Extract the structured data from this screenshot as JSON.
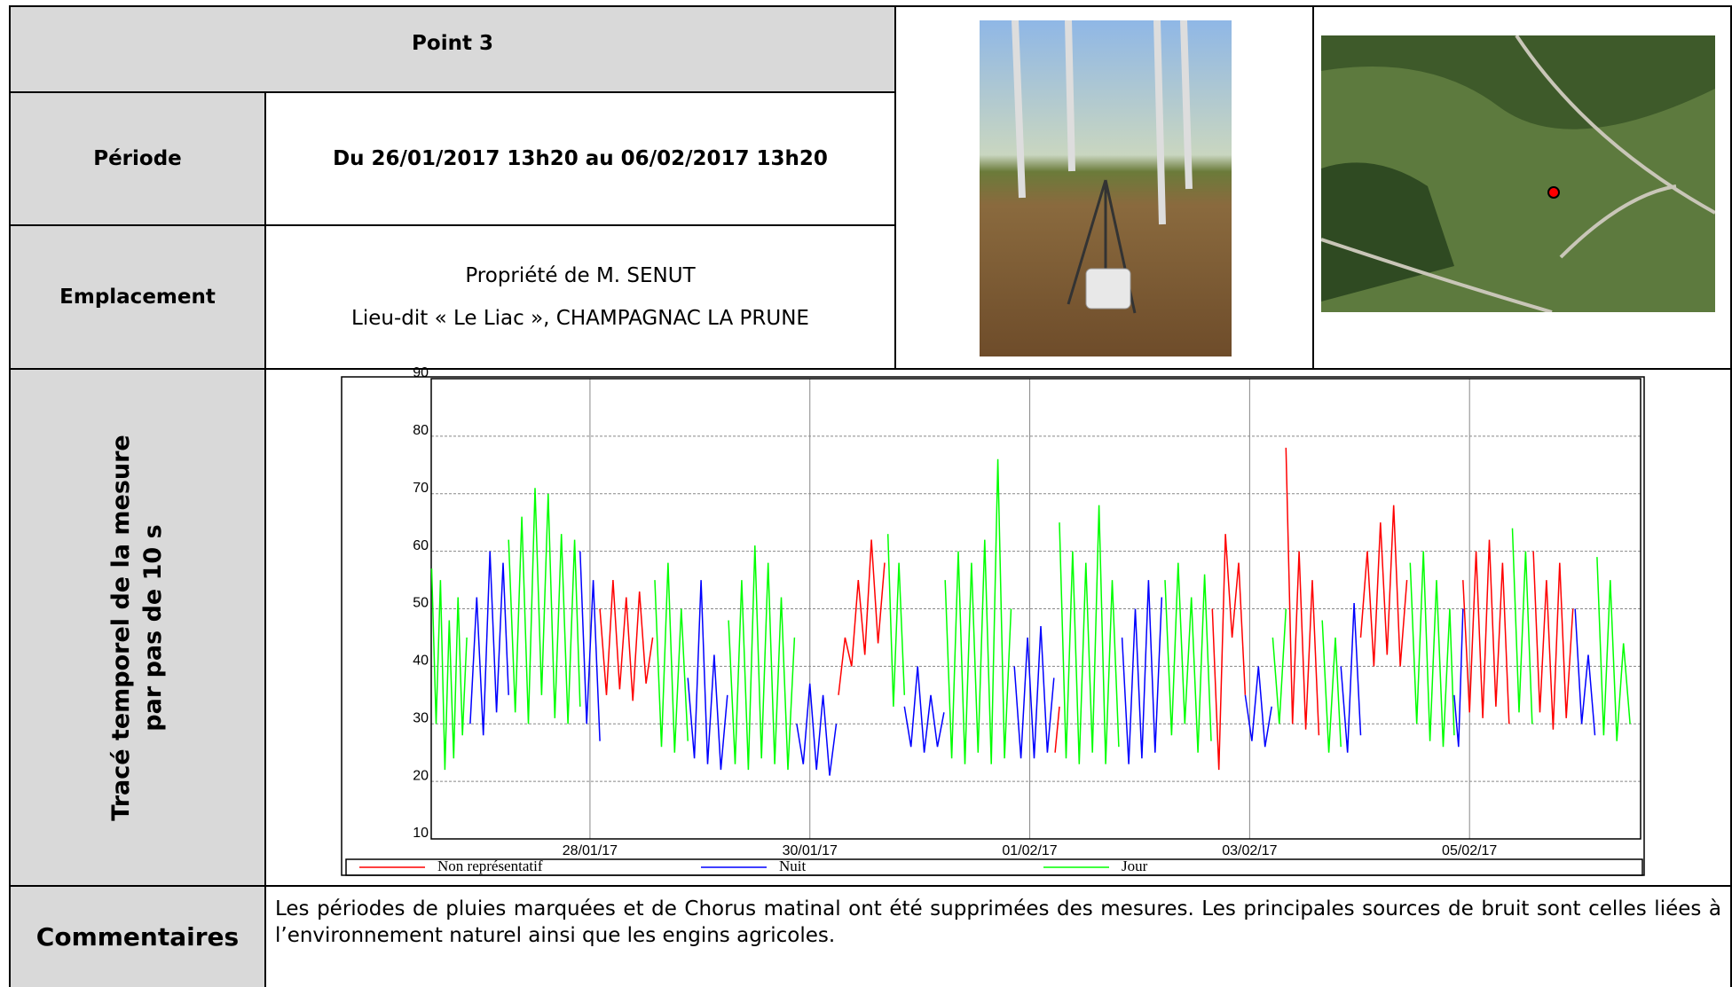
{
  "header": {
    "title": "Point 3"
  },
  "rows": [
    {
      "label": "Période",
      "value": "Du 26/01/2017 13h20 au 06/02/2017 13h20"
    },
    {
      "label": "Emplacement",
      "lines": [
        "Propriété de M. SENUT",
        "Lieu-dit « Le Liac », CHAMPAGNAC LA PRUNE"
      ]
    }
  ],
  "chart_label": [
    "Tracé temporel de la mesure",
    "par pas de 10 s"
  ],
  "chart_data": {
    "type": "line",
    "xlim": [
      0.556,
      11.556
    ],
    "xticks": [
      {
        "value": 2,
        "label": "28/01/17"
      },
      {
        "value": 4,
        "label": "30/01/17"
      },
      {
        "value": 6,
        "label": "01/02/17"
      },
      {
        "value": 8,
        "label": "03/02/17"
      },
      {
        "value": 10,
        "label": "05/02/17"
      }
    ],
    "ylim": [
      10,
      90
    ],
    "yticks": [
      10,
      20,
      30,
      40,
      50,
      60,
      70,
      80,
      90
    ],
    "grid": true,
    "series": [
      {
        "name": "Non représentatif",
        "color": "#ff0000",
        "x": [
          2.09,
          2.15,
          2.21,
          2.27,
          2.33,
          2.39,
          2.45,
          2.51,
          2.57,
          null,
          4.26,
          4.32,
          4.38,
          4.44,
          4.5,
          4.56,
          4.62,
          4.68,
          null,
          6.23,
          6.27,
          null,
          7.66,
          7.72,
          7.78,
          7.84,
          7.9,
          7.96,
          null,
          8.33,
          8.39,
          8.45,
          8.51,
          8.57,
          8.63,
          null,
          9.01,
          9.07,
          9.13,
          9.19,
          9.25,
          9.31,
          9.37,
          9.43,
          null,
          9.94,
          10.0,
          10.06,
          10.12,
          10.18,
          10.24,
          10.3,
          10.36,
          null,
          10.58,
          10.64,
          10.7,
          10.76,
          10.82,
          10.88,
          10.94
        ],
        "values": [
          50,
          35,
          55,
          36,
          52,
          34,
          53,
          37,
          45,
          null,
          35,
          45,
          40,
          55,
          42,
          62,
          44,
          58,
          null,
          25,
          33,
          null,
          50,
          22,
          63,
          45,
          58,
          35,
          null,
          78,
          30,
          60,
          29,
          55,
          28,
          null,
          45,
          60,
          40,
          65,
          42,
          68,
          40,
          55,
          null,
          55,
          32,
          60,
          31,
          62,
          33,
          58,
          30,
          null,
          60,
          32,
          55,
          29,
          58,
          31,
          50
        ]
      },
      {
        "name": "Nuit",
        "color": "#0000ff",
        "x": [
          0.91,
          0.97,
          1.03,
          1.09,
          1.15,
          1.21,
          1.26,
          null,
          1.91,
          1.97,
          2.03,
          2.09,
          null,
          2.89,
          2.95,
          3.01,
          3.07,
          3.13,
          3.19,
          3.25,
          null,
          3.88,
          3.94,
          4.0,
          4.06,
          4.12,
          4.18,
          4.24,
          null,
          4.86,
          4.92,
          4.98,
          5.04,
          5.1,
          5.16,
          5.22,
          null,
          5.86,
          5.92,
          5.98,
          6.04,
          6.1,
          6.16,
          6.22,
          null,
          6.84,
          6.9,
          6.96,
          7.02,
          7.08,
          7.14,
          7.2,
          null,
          7.96,
          8.02,
          8.08,
          8.14,
          8.2,
          null,
          8.83,
          8.89,
          8.95,
          9.01,
          null,
          9.86,
          9.9,
          9.94,
          null,
          10.96,
          11.02,
          11.08,
          11.14
        ],
        "values": [
          30,
          52,
          28,
          60,
          32,
          58,
          35,
          null,
          60,
          30,
          55,
          27,
          null,
          38,
          24,
          55,
          23,
          42,
          22,
          35,
          null,
          30,
          23,
          37,
          22,
          35,
          21,
          30,
          null,
          33,
          26,
          40,
          25,
          35,
          26,
          32,
          null,
          40,
          24,
          45,
          24,
          47,
          25,
          38,
          null,
          45,
          23,
          50,
          24,
          55,
          25,
          52,
          null,
          35,
          27,
          40,
          26,
          33,
          null,
          40,
          25,
          51,
          28,
          null,
          35,
          26,
          50,
          null,
          50,
          30,
          42,
          28
        ]
      },
      {
        "name": "Jour",
        "color": "#00ff00",
        "x": [
          0.56,
          0.6,
          0.64,
          0.68,
          0.72,
          0.76,
          0.8,
          0.84,
          0.88,
          null,
          1.26,
          1.32,
          1.38,
          1.44,
          1.5,
          1.56,
          1.62,
          1.68,
          1.74,
          1.8,
          1.86,
          1.91,
          null,
          2.59,
          2.65,
          2.71,
          2.77,
          2.83,
          2.89,
          null,
          3.26,
          3.32,
          3.38,
          3.44,
          3.5,
          3.56,
          3.62,
          3.68,
          3.74,
          3.8,
          3.86,
          null,
          4.71,
          4.76,
          4.81,
          4.86,
          null,
          5.23,
          5.29,
          5.35,
          5.41,
          5.47,
          5.53,
          5.59,
          5.65,
          5.71,
          5.77,
          5.83,
          null,
          6.27,
          6.33,
          6.39,
          6.45,
          6.51,
          6.57,
          6.63,
          6.69,
          6.75,
          6.81,
          null,
          7.23,
          7.29,
          7.35,
          7.41,
          7.47,
          7.53,
          7.59,
          7.65,
          null,
          8.21,
          8.27,
          8.33,
          null,
          8.66,
          8.72,
          8.78,
          8.83,
          null,
          9.46,
          9.52,
          9.58,
          9.64,
          9.7,
          9.76,
          9.82,
          9.86,
          null,
          10.39,
          10.45,
          10.51,
          10.57,
          null,
          11.16,
          11.22,
          11.28,
          11.34,
          11.4,
          11.46
        ],
        "values": [
          57,
          30,
          55,
          22,
          48,
          24,
          52,
          28,
          45,
          null,
          62,
          32,
          66,
          30,
          71,
          35,
          70,
          31,
          63,
          30,
          62,
          33,
          null,
          55,
          26,
          58,
          25,
          50,
          27,
          null,
          48,
          23,
          55,
          22,
          61,
          24,
          58,
          23,
          52,
          22,
          45,
          null,
          63,
          33,
          58,
          35,
          null,
          55,
          24,
          60,
          23,
          58,
          25,
          62,
          23,
          76,
          24,
          50,
          null,
          65,
          24,
          60,
          23,
          58,
          25,
          68,
          23,
          55,
          26,
          null,
          55,
          28,
          58,
          30,
          52,
          25,
          56,
          27,
          null,
          45,
          30,
          50,
          null,
          48,
          25,
          45,
          26,
          null,
          58,
          30,
          60,
          27,
          55,
          26,
          50,
          28,
          null,
          64,
          32,
          60,
          30,
          null,
          59,
          28,
          55,
          27,
          44,
          30
        ]
      }
    ]
  },
  "comments": {
    "label": "Commentaires",
    "text": "Les périodes de pluies marquées et de Chorus matinal ont été supprimées des mesures. Les principales sources de bruit sont celles liées à l’environnement naturel ainsi que les engins agricoles."
  }
}
